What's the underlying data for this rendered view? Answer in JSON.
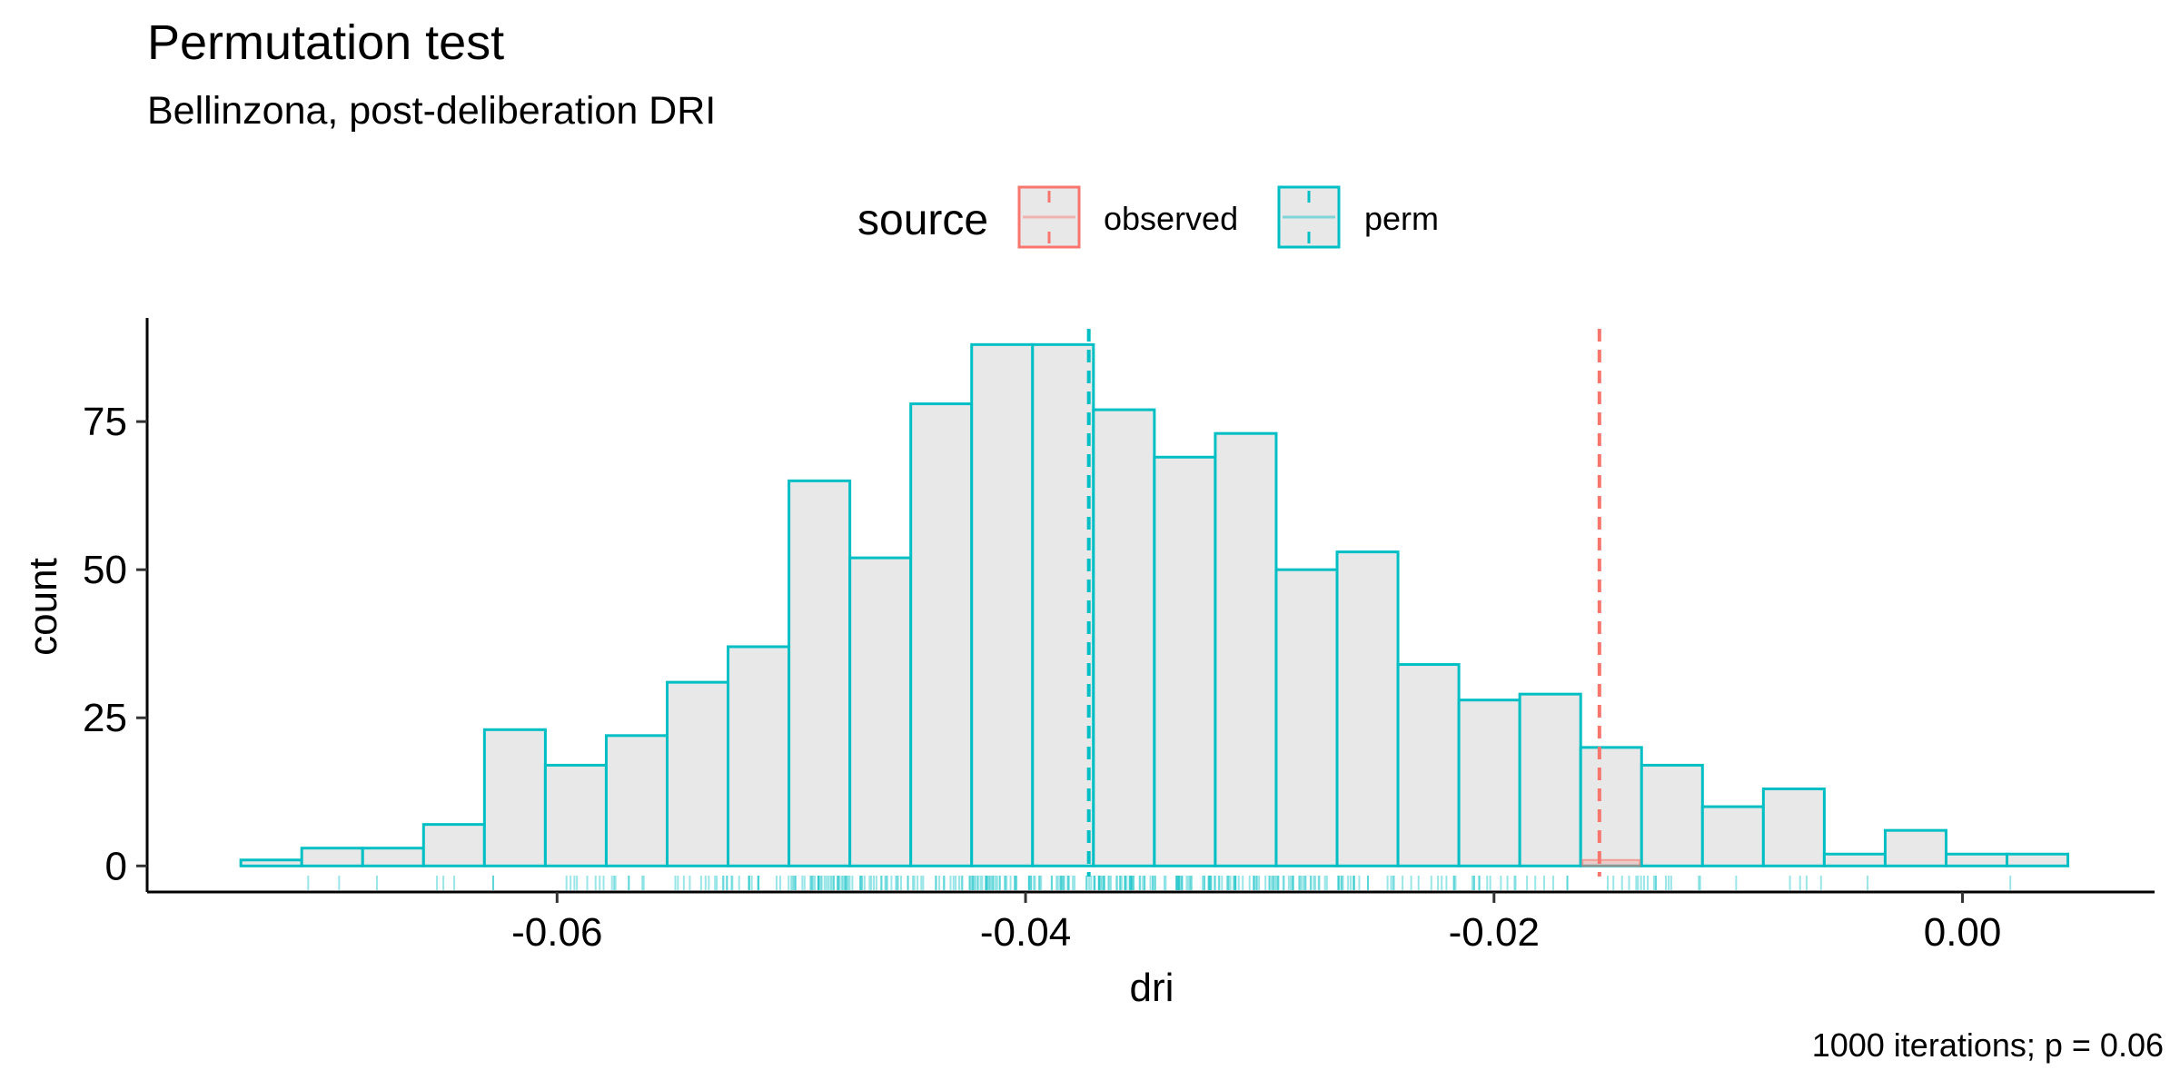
{
  "chart_data": {
    "type": "bar",
    "title": "Permutation test",
    "subtitle": "Bellinzona, post-deliberation DRI",
    "xlabel": "dri",
    "ylabel": "count",
    "caption": "1000 iterations; p = 0.06",
    "legend": {
      "title": "source",
      "placement": "top",
      "entries": [
        {
          "label": "observed",
          "color": "#F8766D"
        },
        {
          "label": "perm",
          "color": "#00BFC4"
        }
      ]
    },
    "xlim": [
      -0.0775,
      0.0082
    ],
    "ylim": [
      -4.4,
      92.5
    ],
    "x_ticks": [
      -0.06,
      -0.04,
      -0.02,
      0.0
    ],
    "x_tick_labels": [
      "-0.06",
      "-0.04",
      "-0.02",
      "0.00"
    ],
    "y_ticks": [
      0,
      25,
      50,
      75
    ],
    "y_tick_labels": [
      "0",
      "25",
      "50",
      "75"
    ],
    "bin_width": 0.0026,
    "bins_start": -0.0735,
    "grid": false,
    "series": [
      {
        "name": "perm",
        "color": "#00BFC4",
        "fill": "#E8E8E8",
        "values": [
          1,
          3,
          3,
          7,
          23,
          17,
          22,
          31,
          37,
          65,
          52,
          78,
          88,
          88,
          77,
          69,
          73,
          50,
          53,
          34,
          28,
          29,
          20,
          17,
          10,
          13,
          2,
          6,
          2,
          2
        ]
      },
      {
        "name": "observed",
        "color": "#F8766D",
        "fill": "#E8E8E8",
        "bin_index": 22,
        "values": [
          1
        ]
      }
    ],
    "vlines": [
      {
        "name": "perm",
        "x": -0.0373,
        "color": "#00BFC4"
      },
      {
        "name": "observed",
        "x": -0.0155,
        "color": "#F8766D"
      }
    ]
  }
}
